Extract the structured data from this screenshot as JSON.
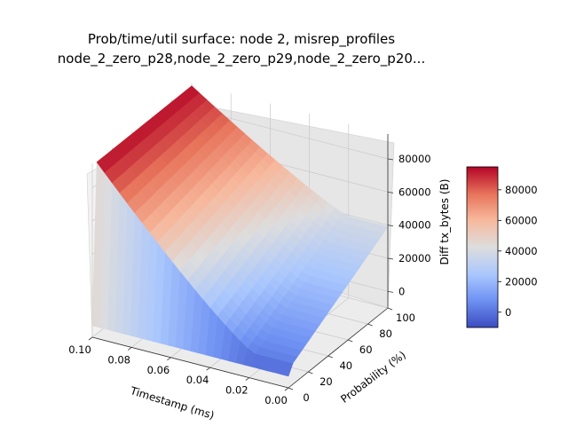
{
  "chart_data": {
    "type": "surface",
    "title_line1": "Prob/time/util surface: node 2, misrep_profiles",
    "title_line2": "node_2_zero_p28,node_2_zero_p29,node_2_zero_p20...",
    "xlabel": "Timestamp (ms)",
    "ylabel": "Probability (%)",
    "zlabel": "Diff tx_bytes (B)",
    "x_ticks": [
      "0.10",
      "0.08",
      "0.06",
      "0.04",
      "0.02",
      "0.00"
    ],
    "y_ticks": [
      "0",
      "20",
      "40",
      "60",
      "80",
      "100"
    ],
    "z_ticks": [
      "0",
      "20000",
      "40000",
      "60000",
      "80000"
    ],
    "colorbar_ticks": [
      "0",
      "20000",
      "40000",
      "60000",
      "80000"
    ],
    "x_range": [
      0.0,
      0.1
    ],
    "y_range": [
      0,
      100
    ],
    "z_range": [
      -10000,
      95000
    ],
    "colormap": "coolwarm",
    "cmap_colors": [
      "#3b4cc0",
      "#6f92f3",
      "#aac7fd",
      "#dddddd",
      "#f7b89c",
      "#e7745b",
      "#b40426"
    ],
    "surface_peak": 95000,
    "surface_floor": -3000
  }
}
